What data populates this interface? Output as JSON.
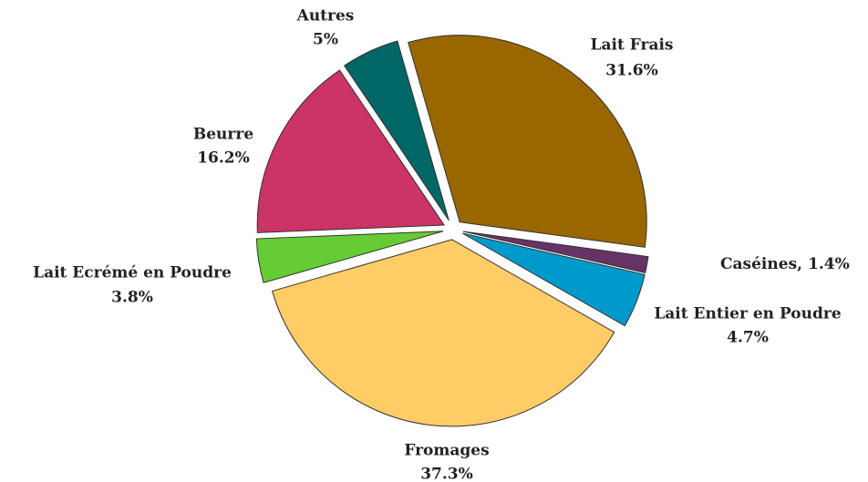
{
  "chart_data": {
    "type": "pie",
    "categories": [
      "Lait Frais",
      "Caséines,",
      "Lait Entier en Poudre",
      "Fromages",
      "Lait Ecrémé en Poudre",
      "Beurre",
      "Autres"
    ],
    "values": [
      31.6,
      1.4,
      4.7,
      37.3,
      3.8,
      16.2,
      5
    ],
    "value_labels": [
      "31.6%",
      "1.4%",
      "4.7%",
      "37.3%",
      "3.8%",
      "16.2%",
      "5%"
    ],
    "colors": [
      "#996600",
      "#663366",
      "#0099cc",
      "#ffcc66",
      "#66cc33",
      "#cc3366",
      "#006666"
    ]
  }
}
